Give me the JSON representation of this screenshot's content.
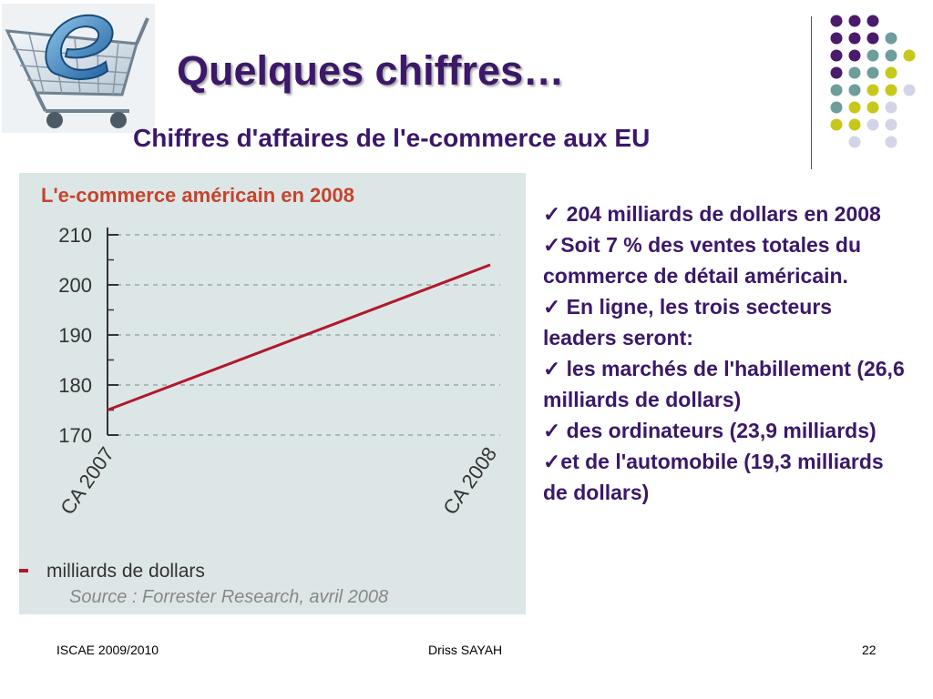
{
  "slide": {
    "title": "Quelques chiffres…",
    "subtitle": "Chiffres d'affaires de l'e-commerce aux EU"
  },
  "colors": {
    "title": "#3b1869",
    "accent_purple": "#4a1a6b",
    "accent_teal": "#6e9d9b",
    "accent_yellow": "#c8c81a",
    "accent_lavender": "#d4d4e8",
    "chart_line": "#b0192a",
    "chart_bg": "#dde6e6"
  },
  "chart_data": {
    "type": "line",
    "title": "L'e-commerce américain en 2008",
    "categories": [
      "CA 2007",
      "CA 2008"
    ],
    "series": [
      {
        "name": "milliards de dollars",
        "values": [
          175,
          204
        ]
      }
    ],
    "yticks": [
      170,
      180,
      190,
      200,
      210
    ],
    "ylim": [
      170,
      210
    ],
    "grid": true,
    "legend": "bottom-left",
    "source": "Source : Forrester Research, avril 2008"
  },
  "bullets": [
    "✓ 204 milliards de dollars en 2008",
    "✓Soit 7 % des ventes totales du commerce de détail américain.",
    "✓ En ligne, les trois secteurs leaders seront:",
    "✓ les marchés de l'habillement (26,6 milliards de dollars)",
    "✓ des ordinateurs (23,9 milliards)",
    "✓et de l'automobile (19,3 milliards de dollars)"
  ],
  "footer": {
    "left": "ISCAE 2009/2010",
    "center": "Driss SAYAH",
    "right": "22"
  },
  "logo": {
    "icon": "shopping-cart-icon",
    "letter": "e"
  }
}
